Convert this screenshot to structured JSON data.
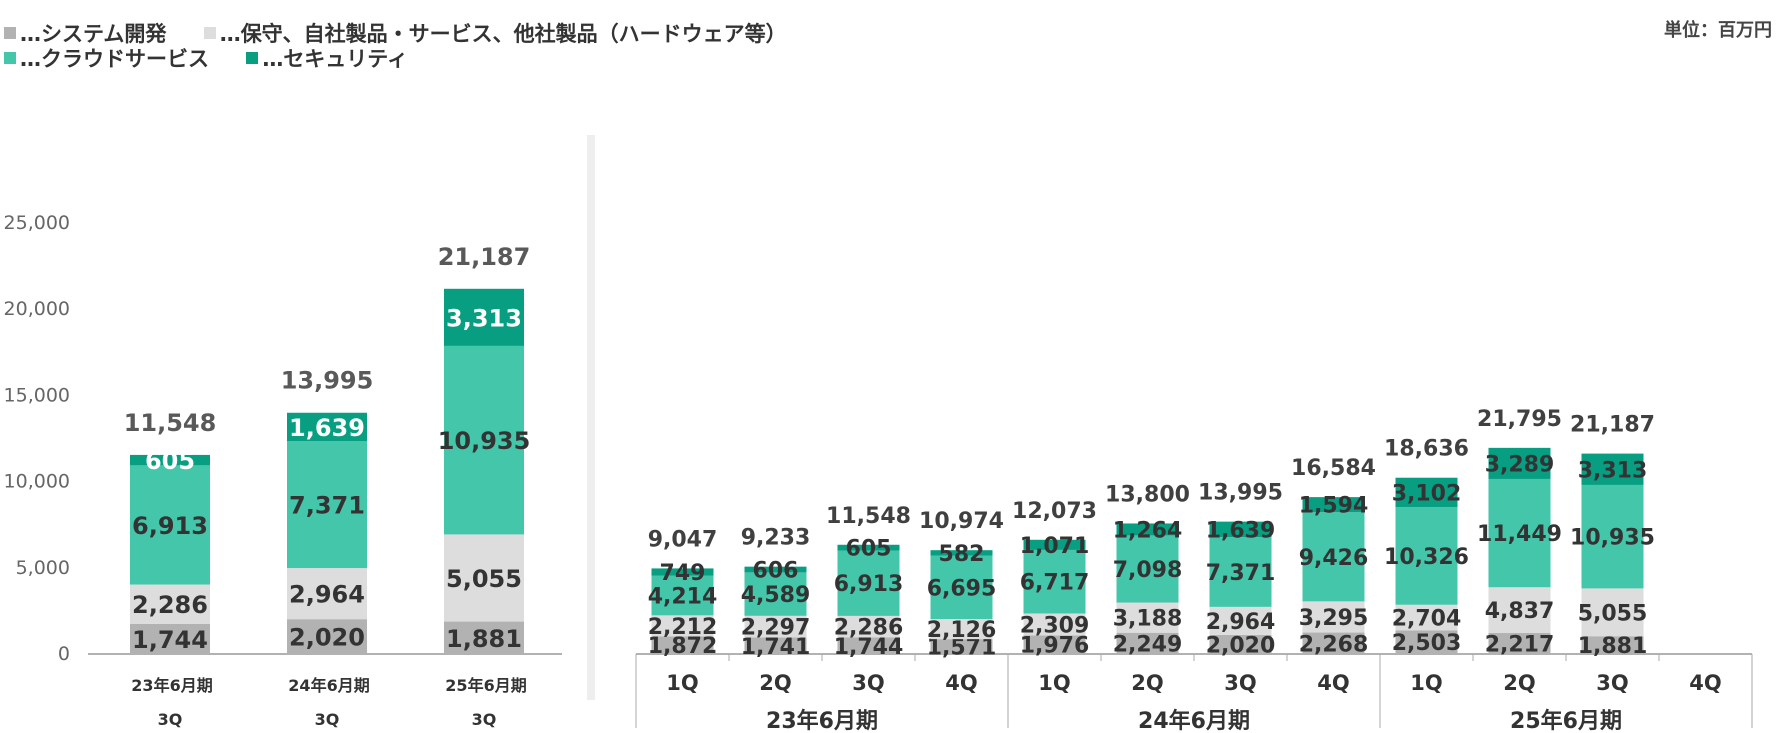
{
  "unit_label": "単位：百万円",
  "legend": [
    {
      "text": "…システム開発",
      "color": "#b2b2b2"
    },
    {
      "text": "…保守、自社製品・サービス、他社製品（ハードウェア等）",
      "color": "#dddddd"
    },
    {
      "text": "…クラウドサービス",
      "color": "#43c6a9"
    },
    {
      "text": "…セキュリティ",
      "color": "#079e82"
    }
  ],
  "chart_data": [
    {
      "type": "bar",
      "stacked": true,
      "categories": [
        "23年6月期",
        "24年6月期",
        "25年6月期"
      ],
      "sub_labels": [
        "3Q",
        "3Q",
        "3Q"
      ],
      "ylim": [
        0,
        25000
      ],
      "yticks": [
        "0",
        "5,000",
        "10,000",
        "15,000",
        "20,000",
        "25,000"
      ],
      "series": [
        {
          "name": "…システム開発",
          "values": [
            1744,
            2020,
            1881
          ],
          "labels": [
            "1,744",
            "2,020",
            "1,881"
          ],
          "color": "#b2b2b2",
          "label_color": "#333333"
        },
        {
          "name": "…保守、自社製品・サービス、他社製品（ハードウェア等）",
          "values": [
            2286,
            2964,
            5055
          ],
          "labels": [
            "2,286",
            "2,964",
            "5,055"
          ],
          "color": "#dddddd",
          "label_color": "#333333"
        },
        {
          "name": "…クラウドサービス",
          "values": [
            6913,
            7371,
            10935
          ],
          "labels": [
            "6,913",
            "7,371",
            "10,935"
          ],
          "color": "#43c6a9",
          "label_color": "#333333"
        },
        {
          "name": "…セキュリティ",
          "values": [
            605,
            1639,
            3313
          ],
          "labels": [
            "605",
            "1,639",
            "3,313"
          ],
          "color": "#079e82",
          "label_color": "#ffffff"
        }
      ],
      "totals": [
        "11,548",
        "13,995",
        "21,187"
      ]
    },
    {
      "type": "bar",
      "stacked": true,
      "categories": [
        "1Q",
        "2Q",
        "3Q",
        "4Q",
        "1Q",
        "2Q",
        "3Q",
        "4Q",
        "1Q",
        "2Q",
        "3Q",
        "4Q"
      ],
      "groups": [
        {
          "label": "23年6月期",
          "count": 4
        },
        {
          "label": "24年6月期",
          "count": 4
        },
        {
          "label": "25年6月期",
          "count": 4
        }
      ],
      "series": [
        {
          "name": "…システム開発",
          "values": [
            1872,
            1741,
            1744,
            1571,
            1976,
            2249,
            2020,
            2268,
            2503,
            2217,
            1881,
            null
          ],
          "labels": [
            "1,872",
            "1,741",
            "1,744",
            "1,571",
            "1,976",
            "2,249",
            "2,020",
            "2,268",
            "2,503",
            "2,217",
            "1,881",
            ""
          ],
          "color": "#b2b2b2",
          "label_color": "#333333"
        },
        {
          "name": "…保守、自社製品・サービス、他社製品（ハードウェア等）",
          "values": [
            2212,
            2297,
            2286,
            2126,
            2309,
            3188,
            2964,
            3295,
            2704,
            4837,
            5055,
            null
          ],
          "labels": [
            "2,212",
            "2,297",
            "2,286",
            "2,126",
            "2,309",
            "3,188",
            "2,964",
            "3,295",
            "2,704",
            "4,837",
            "5,055",
            ""
          ],
          "color": "#dddddd",
          "label_color": "#333333"
        },
        {
          "name": "…クラウドサービス",
          "values": [
            4214,
            4589,
            6913,
            6695,
            6717,
            7098,
            7371,
            9426,
            10326,
            11449,
            10935,
            null
          ],
          "labels": [
            "4,214",
            "4,589",
            "6,913",
            "6,695",
            "6,717",
            "7,098",
            "7,371",
            "9,426",
            "10,326",
            "11,449",
            "10,935",
            ""
          ],
          "color": "#43c6a9",
          "label_color": "#333333"
        },
        {
          "name": "…セキュリティ",
          "values": [
            749,
            606,
            605,
            582,
            1071,
            1264,
            1639,
            1594,
            3102,
            3289,
            3313,
            null
          ],
          "labels": [
            "749",
            "606",
            "605",
            "582",
            "1,071",
            "1,264",
            "1,639",
            "1,594",
            "3,102",
            "3,289",
            "3,313",
            ""
          ],
          "color": "#079e82",
          "label_color": "#333333"
        }
      ],
      "totals": [
        "9,047",
        "9,233",
        "11,548",
        "10,974",
        "12,073",
        "13,800",
        "13,995",
        "16,584",
        "18,636",
        "21,795",
        "21,187",
        ""
      ]
    }
  ]
}
